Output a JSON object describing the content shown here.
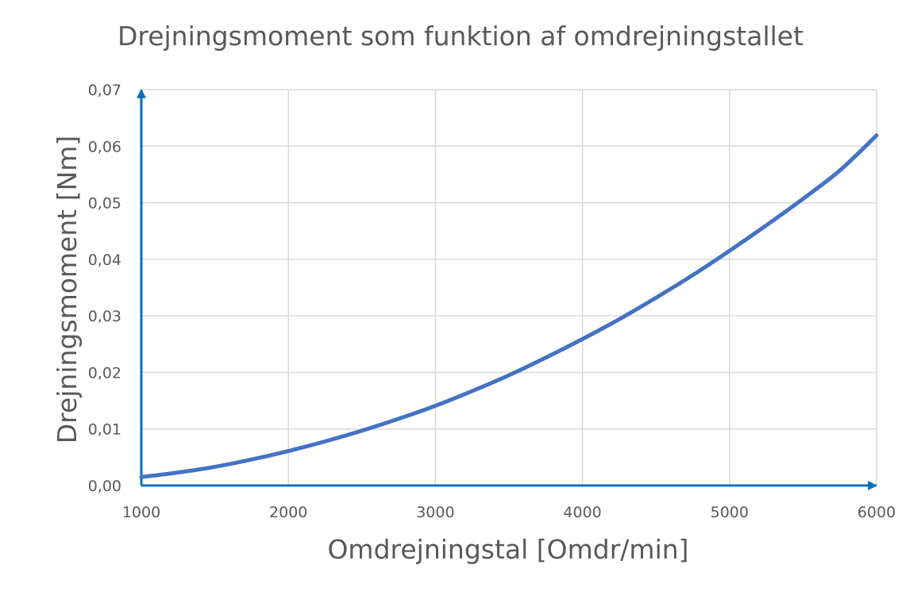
{
  "chart_data": {
    "type": "line",
    "title": "Drejningsmoment som funktion af omdrejningstallet",
    "xlabel": "Omdrejningstal [Omdr/min]",
    "ylabel": "Drejningsmoment [Nm]",
    "xlim": [
      1000,
      6000
    ],
    "ylim": [
      0,
      0.07
    ],
    "x_ticks": [
      "1000",
      "2000",
      "3000",
      "4000",
      "5000",
      "6000"
    ],
    "y_ticks": [
      "0,00",
      "0,01",
      "0,02",
      "0,03",
      "0,04",
      "0,05",
      "0,06",
      "0,07"
    ],
    "grid": true,
    "legend": "none",
    "series": [
      {
        "color": "#4472c4",
        "x": [
          1000,
          1250,
          1500,
          1750,
          2000,
          2250,
          2500,
          2750,
          3000,
          3250,
          3500,
          3750,
          4000,
          4250,
          4500,
          4750,
          5000,
          5250,
          5500,
          5750,
          6000
        ],
        "y": [
          0.0015,
          0.0023,
          0.0033,
          0.0046,
          0.0061,
          0.0078,
          0.0097,
          0.0118,
          0.0141,
          0.0167,
          0.0195,
          0.0226,
          0.0259,
          0.0294,
          0.0332,
          0.0372,
          0.0415,
          0.046,
          0.0507,
          0.0557,
          0.0619
        ]
      }
    ],
    "axis_color": "#0070c0",
    "grid_color": "#d9d9d9"
  }
}
